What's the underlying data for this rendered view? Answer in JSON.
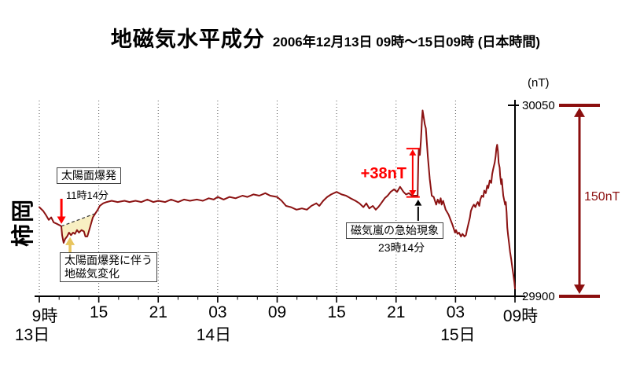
{
  "title": "地磁気水平成分",
  "subtitle": "2006年12月13日 09時～15日09時 (日本時間)",
  "station_label": "柿岡",
  "unit_label": "(nT)",
  "colors": {
    "line": "#8b1212",
    "bright_red": "#ff0000",
    "dark_red": "#8b0e0e",
    "flare_fill": "#f8efc2",
    "flare_arrow": "#e8c55f",
    "grid": "#555555",
    "axis": "#000000"
  },
  "axes": {
    "x": {
      "start_hour": 0,
      "end_hour": 48,
      "major_step_hours": 6,
      "minor_step_hours": 2,
      "tick_labels": [
        "9時",
        "15",
        "21",
        "03",
        "09",
        "15",
        "21",
        "03",
        "09時"
      ],
      "date_labels": [
        {
          "text": "13日",
          "hour": 0
        },
        {
          "text": "14日",
          "hour": 18
        },
        {
          "text": "15日",
          "hour": 42
        }
      ]
    },
    "y": {
      "min": 29900,
      "max": 30050,
      "tick_label_max": "30050",
      "tick_label_min": "29900"
    }
  },
  "annotations": {
    "flare": {
      "label": "太陽面爆発",
      "time": "11時14分",
      "hour": 2.23,
      "value": 29955
    },
    "flare_change": {
      "label_line1": "太陽面爆発に伴う",
      "label_line2": "地磁気変化",
      "baseline": [
        [
          2.22,
          29955
        ],
        [
          5.65,
          29965
        ]
      ]
    },
    "sc": {
      "label": "磁気嵐の急始現象",
      "time": "23時14分",
      "hour": 38.23,
      "step_label": "+38nT",
      "step_from": 29978,
      "step_to": 30016
    },
    "range": {
      "label": "150nT",
      "span_nt": 150
    }
  },
  "chart_data": {
    "type": "line",
    "title": "地磁気水平成分 2006年12月13日 09時～15日09時 (日本時間)",
    "station": "柿岡",
    "ylabel": "(nT)",
    "ylim": [
      29900,
      30050
    ],
    "x_unit": "hours since 2006-12-13 09:00 JST",
    "xlim": [
      0,
      48
    ],
    "grid": "vertical-dotted-every-6h",
    "series": [
      {
        "name": "柿岡 地磁気水平成分",
        "points": [
          [
            0,
            29970
          ],
          [
            0.4,
            29967
          ],
          [
            0.65,
            29964
          ],
          [
            0.95,
            29960
          ],
          [
            1.2,
            29962
          ],
          [
            1.45,
            29958
          ],
          [
            1.75,
            29957
          ],
          [
            2.0,
            29956
          ],
          [
            2.22,
            29955
          ],
          [
            2.3,
            29948
          ],
          [
            2.45,
            29942
          ],
          [
            2.6,
            29945
          ],
          [
            2.8,
            29947
          ],
          [
            3.0,
            29950
          ],
          [
            3.2,
            29948
          ],
          [
            3.4,
            29950
          ],
          [
            3.6,
            29949
          ],
          [
            3.8,
            29952
          ],
          [
            4.0,
            29950
          ],
          [
            4.25,
            29952
          ],
          [
            4.5,
            29951
          ],
          [
            4.65,
            29947
          ],
          [
            4.85,
            29947
          ],
          [
            5.0,
            29951
          ],
          [
            5.15,
            29955
          ],
          [
            5.4,
            29962
          ],
          [
            5.65,
            29965
          ],
          [
            5.9,
            29968
          ],
          [
            6.1,
            29971
          ],
          [
            6.45,
            29973
          ],
          [
            6.8,
            29974
          ],
          [
            7.3,
            29975
          ],
          [
            7.9,
            29974
          ],
          [
            8.6,
            29975
          ],
          [
            9.1,
            29974
          ],
          [
            9.7,
            29975
          ],
          [
            10.3,
            29974
          ],
          [
            10.9,
            29976
          ],
          [
            11.5,
            29974
          ],
          [
            12.0,
            29975
          ],
          [
            12.7,
            29974
          ],
          [
            13.3,
            29976
          ],
          [
            14.0,
            29974
          ],
          [
            14.6,
            29976
          ],
          [
            15.2,
            29975
          ],
          [
            15.9,
            29976
          ],
          [
            16.5,
            29975
          ],
          [
            17.1,
            29977
          ],
          [
            17.6,
            29976
          ],
          [
            18.0,
            29978
          ],
          [
            18.6,
            29976
          ],
          [
            19.2,
            29978
          ],
          [
            19.8,
            29977
          ],
          [
            20.5,
            29979
          ],
          [
            21.0,
            29978
          ],
          [
            21.6,
            29980
          ],
          [
            22.2,
            29979
          ],
          [
            22.8,
            29981
          ],
          [
            23.3,
            29979
          ],
          [
            24.0,
            29978
          ],
          [
            24.45,
            29975
          ],
          [
            24.9,
            29971
          ],
          [
            25.4,
            29970
          ],
          [
            25.95,
            29968
          ],
          [
            26.5,
            29969
          ],
          [
            27.0,
            29968
          ],
          [
            27.45,
            29971
          ],
          [
            27.95,
            29973
          ],
          [
            28.25,
            29971
          ],
          [
            28.65,
            29975
          ],
          [
            29.05,
            29978
          ],
          [
            29.45,
            29980
          ],
          [
            30.0,
            29982
          ],
          [
            30.5,
            29980
          ],
          [
            30.95,
            29979
          ],
          [
            31.4,
            29977
          ],
          [
            31.9,
            29975
          ],
          [
            32.3,
            29973
          ],
          [
            32.7,
            29970
          ],
          [
            33.0,
            29973
          ],
          [
            33.3,
            29969
          ],
          [
            33.65,
            29971
          ],
          [
            33.95,
            29968
          ],
          [
            34.2,
            29970
          ],
          [
            34.5,
            29973
          ],
          [
            34.85,
            29977
          ],
          [
            35.15,
            29979
          ],
          [
            35.45,
            29982
          ],
          [
            35.8,
            29984
          ],
          [
            36.1,
            29982
          ],
          [
            36.4,
            29986
          ],
          [
            36.75,
            29982
          ],
          [
            37.0,
            29980
          ],
          [
            37.3,
            29981
          ],
          [
            37.6,
            29979
          ],
          [
            37.95,
            29979
          ],
          [
            38.18,
            29979
          ],
          [
            38.25,
            30008
          ],
          [
            38.3,
            30016
          ],
          [
            38.4,
            30011
          ],
          [
            38.5,
            30022
          ],
          [
            38.56,
            30030
          ],
          [
            38.62,
            30040
          ],
          [
            38.68,
            30046
          ],
          [
            38.78,
            30041
          ],
          [
            38.9,
            30035
          ],
          [
            39.0,
            30032
          ],
          [
            39.2,
            30010
          ],
          [
            39.4,
            29992
          ],
          [
            39.6,
            29979
          ],
          [
            39.8,
            29978
          ],
          [
            40.05,
            29972
          ],
          [
            40.2,
            29976
          ],
          [
            40.35,
            29973
          ],
          [
            40.5,
            29977
          ],
          [
            40.6,
            29972
          ],
          [
            40.75,
            29975
          ],
          [
            41.0,
            29968
          ],
          [
            41.3,
            29964
          ],
          [
            41.55,
            29959
          ],
          [
            41.7,
            29956
          ],
          [
            41.95,
            29950
          ],
          [
            42.05,
            29952
          ],
          [
            42.2,
            29949
          ],
          [
            42.35,
            29950
          ],
          [
            42.55,
            29947
          ],
          [
            42.7,
            29949
          ],
          [
            42.9,
            29947
          ],
          [
            43.05,
            29948
          ],
          [
            43.15,
            29952
          ],
          [
            43.3,
            29957
          ],
          [
            43.45,
            29962
          ],
          [
            43.55,
            29967
          ],
          [
            43.7,
            29970
          ],
          [
            43.85,
            29972
          ],
          [
            44.0,
            29970
          ],
          [
            44.1,
            29972
          ],
          [
            44.25,
            29974
          ],
          [
            44.4,
            29971
          ],
          [
            44.5,
            29976
          ],
          [
            44.65,
            29979
          ],
          [
            44.8,
            29978
          ],
          [
            44.9,
            29983
          ],
          [
            45.05,
            29981
          ],
          [
            45.2,
            29987
          ],
          [
            45.3,
            29985
          ],
          [
            45.45,
            29991
          ],
          [
            45.6,
            29989
          ],
          [
            45.7,
            29996
          ],
          [
            45.8,
            30000
          ],
          [
            45.95,
            30005
          ],
          [
            46.05,
            30010
          ],
          [
            46.12,
            30016
          ],
          [
            46.2,
            30019
          ],
          [
            46.28,
            30014
          ],
          [
            46.35,
            30005
          ],
          [
            46.45,
            30001
          ],
          [
            46.5,
            29995
          ],
          [
            46.6,
            29988
          ],
          [
            46.67,
            29992
          ],
          [
            46.75,
            29985
          ],
          [
            46.82,
            29979
          ],
          [
            46.9,
            29976
          ],
          [
            47.0,
            29972
          ],
          [
            47.07,
            29974
          ],
          [
            47.15,
            29966
          ],
          [
            47.22,
            29954
          ],
          [
            47.3,
            29948
          ],
          [
            47.4,
            29942
          ],
          [
            47.5,
            29935
          ],
          [
            47.62,
            29929
          ],
          [
            47.72,
            29923
          ],
          [
            47.83,
            29917
          ],
          [
            47.94,
            29911
          ],
          [
            48.0,
            29906
          ]
        ]
      }
    ]
  }
}
